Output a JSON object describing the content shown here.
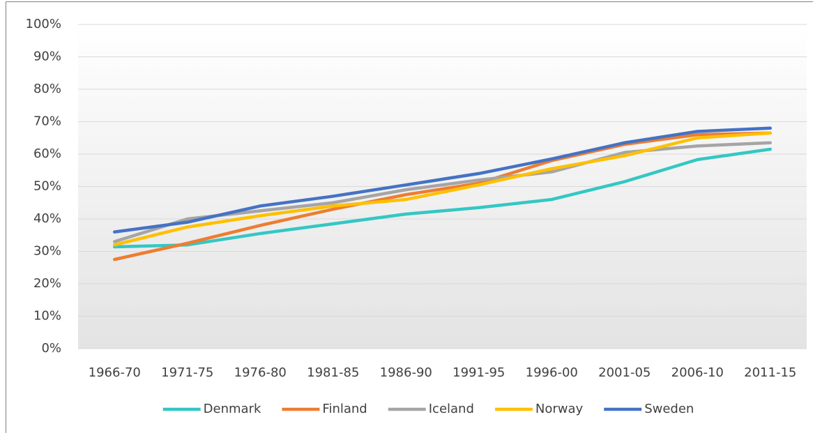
{
  "chart_data": {
    "type": "line",
    "categories": [
      "1966-70",
      "1971-75",
      "1976-80",
      "1981-85",
      "1986-90",
      "1991-95",
      "1996-00",
      "2001-05",
      "2006-10",
      "2011-15"
    ],
    "series": [
      {
        "name": "Denmark",
        "color": "#33c7c4",
        "values": [
          31.4,
          32,
          35.5,
          38.5,
          41.5,
          43.5,
          46,
          51.5,
          58.3,
          61.5
        ]
      },
      {
        "name": "Finland",
        "color": "#ed7d31",
        "values": [
          27.5,
          32.5,
          38,
          43,
          47.5,
          51,
          58,
          63,
          66,
          66.5
        ]
      },
      {
        "name": "Iceland",
        "color": "#a5a5a5",
        "values": [
          33,
          40,
          42.5,
          45,
          49,
          52,
          54.5,
          60.5,
          62.5,
          63.5
        ]
      },
      {
        "name": "Norway",
        "color": "#ffc000",
        "values": [
          32,
          37.5,
          41,
          44,
          46,
          50.5,
          55.5,
          59.5,
          65,
          66.5
        ]
      },
      {
        "name": "Sweden",
        "color": "#4472c4",
        "values": [
          36,
          39,
          44,
          47,
          50.5,
          54,
          58.5,
          63.5,
          67,
          68
        ]
      }
    ],
    "ylim": [
      0,
      100
    ],
    "yticks": [
      {
        "value": 0,
        "label": "0%"
      },
      {
        "value": 10,
        "label": "10%"
      },
      {
        "value": 20,
        "label": "20%"
      },
      {
        "value": 30,
        "label": "30%"
      },
      {
        "value": 40,
        "label": "40%"
      },
      {
        "value": 50,
        "label": "50%"
      },
      {
        "value": 60,
        "label": "60%"
      },
      {
        "value": 70,
        "label": "70%"
      },
      {
        "value": 80,
        "label": "80%"
      },
      {
        "value": 90,
        "label": "90%"
      },
      {
        "value": 100,
        "label": "100%"
      }
    ],
    "grid": true,
    "legend": "bottom"
  }
}
